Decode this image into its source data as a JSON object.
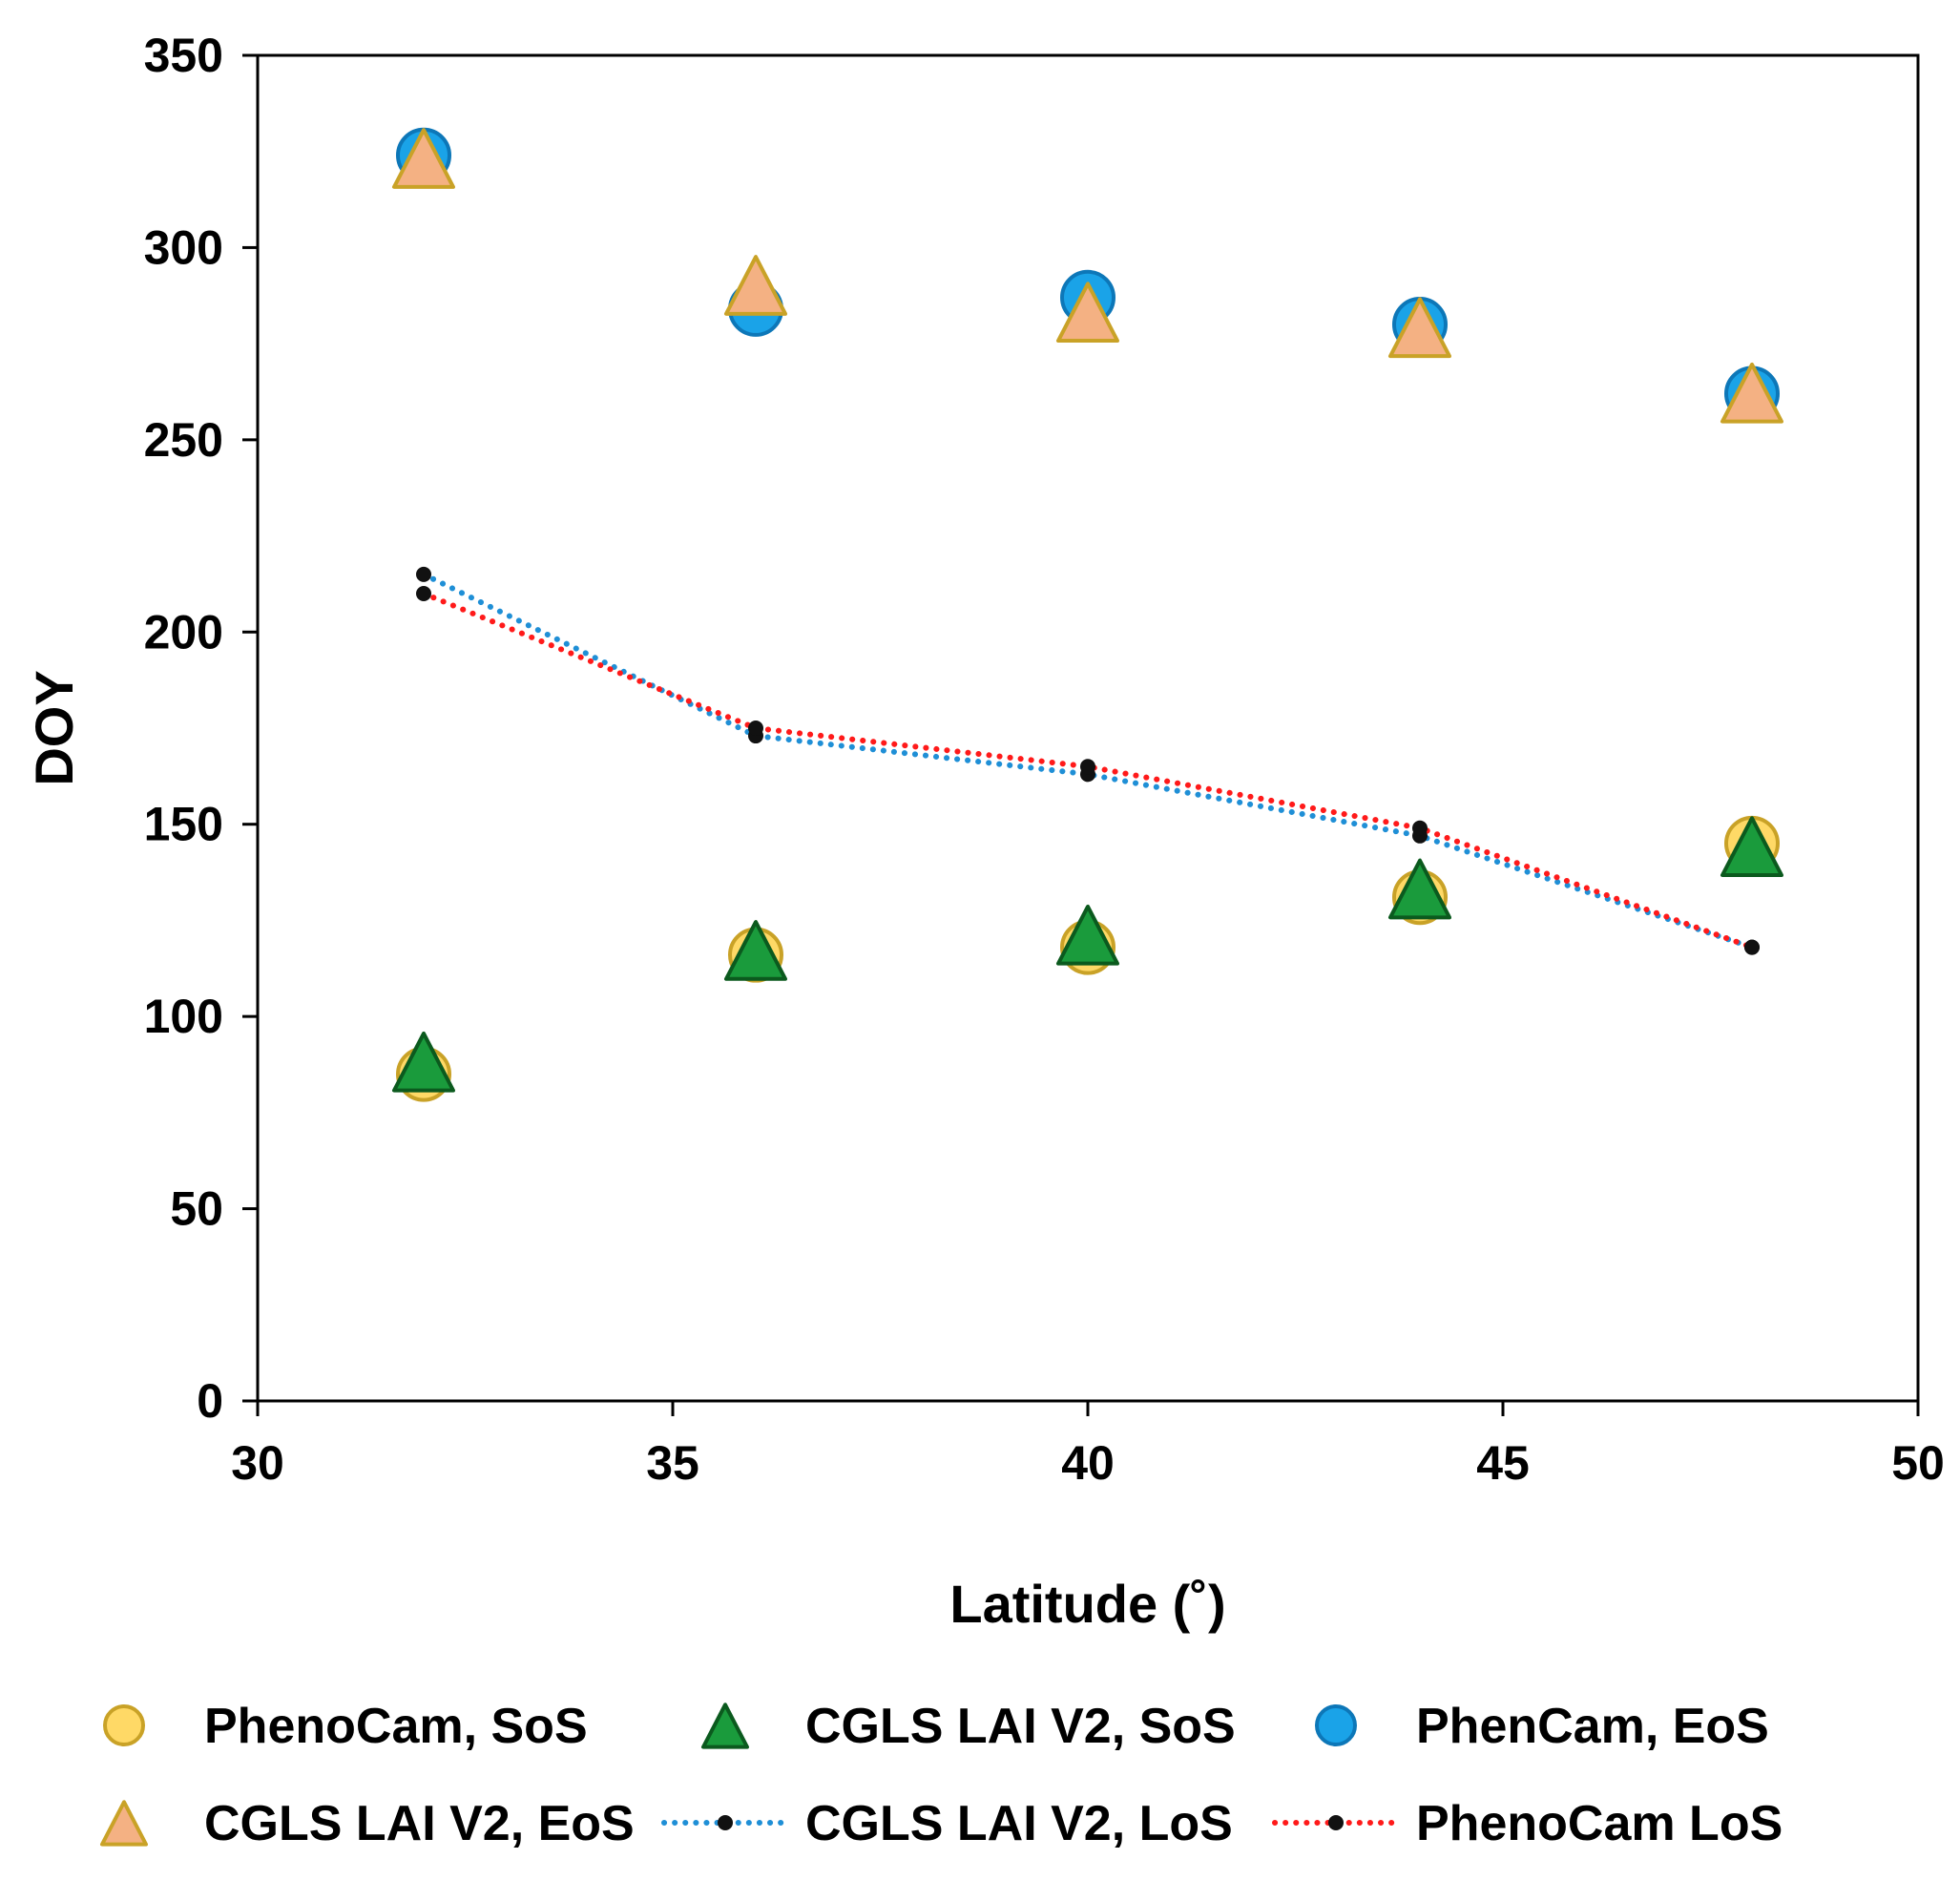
{
  "chart_data": {
    "type": "scatter",
    "xlabel": "Latitude (˚)",
    "ylabel": "DOY",
    "xlim": [
      30,
      50
    ],
    "ylim": [
      0,
      350
    ],
    "xticks": [
      30,
      35,
      40,
      45,
      50
    ],
    "yticks": [
      0,
      50,
      100,
      150,
      200,
      250,
      300,
      350
    ],
    "grid": false,
    "legend_position": "bottom",
    "series": [
      {
        "name": "PhenoCam, SoS",
        "marker": "circle",
        "line": "none",
        "fill": "#FFD966",
        "stroke": "#C9A227",
        "x": [
          32,
          36,
          40,
          44,
          48
        ],
        "y": [
          85,
          116,
          118,
          131,
          145
        ]
      },
      {
        "name": "CGLS LAI V2, SoS",
        "marker": "triangle",
        "line": "none",
        "fill": "#1A9B3C",
        "stroke": "#0B5A1E",
        "x": [
          32,
          36,
          40,
          44,
          48
        ],
        "y": [
          87,
          116,
          120,
          132,
          143
        ]
      },
      {
        "name": "PhenCam, EoS",
        "marker": "circle",
        "line": "none",
        "fill": "#1AA3E8",
        "stroke": "#0D77B8",
        "x": [
          32,
          36,
          40,
          44,
          48
        ],
        "y": [
          324,
          284,
          287,
          280,
          262
        ]
      },
      {
        "name": "CGLS LAI V2, EoS",
        "marker": "triangle",
        "line": "none",
        "fill": "#F4B183",
        "stroke": "#C9A227",
        "x": [
          32,
          36,
          40,
          44,
          48
        ],
        "y": [
          322,
          289,
          282,
          278,
          261
        ]
      },
      {
        "name": "CGLS LAI V2, LoS",
        "marker": "dot",
        "line": "dotted",
        "color": "#1F8FD6",
        "x": [
          32,
          36,
          40,
          44,
          48
        ],
        "y": [
          215,
          173,
          163,
          147,
          118
        ]
      },
      {
        "name": "PhenoCam LoS",
        "marker": "dot",
        "line": "dotted",
        "color": "#FF1A1A",
        "x": [
          32,
          36,
          40,
          44,
          48
        ],
        "y": [
          210,
          175,
          165,
          149,
          118
        ]
      }
    ]
  }
}
